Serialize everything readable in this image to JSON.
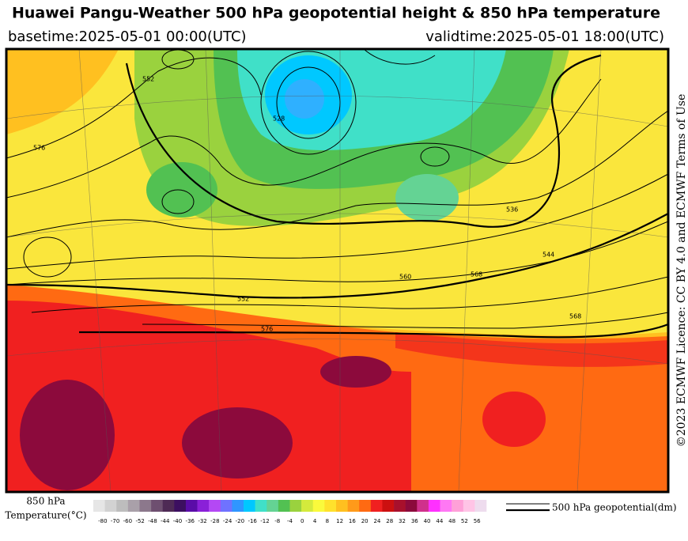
{
  "header": {
    "title": "Huawei Pangu-Weather 500 hPa geopotential height & 850 hPa temperature",
    "basetime": "basetime:2025-05-01 00:00(UTC)",
    "validtime": "validtime:2025-05-01 18:00(UTC)"
  },
  "licence": "©2023 ECMWF Licence: CC BY 4.0 and ECMWF Terms of Use",
  "map": {
    "contour_labels": [
      "576",
      "552",
      "536",
      "544",
      "552",
      "560",
      "568",
      "576",
      "568",
      "528"
    ]
  },
  "colorbar": {
    "title_line1": "850 hPa",
    "title_line2": "Temperature(°C)",
    "ticks": [
      -80,
      -70,
      -60,
      -52,
      -48,
      -44,
      -40,
      -36,
      -32,
      -28,
      -24,
      -20,
      -16,
      -12,
      -8,
      -4,
      0,
      4,
      8,
      12,
      16,
      20,
      24,
      28,
      32,
      36,
      40,
      44,
      48,
      52,
      56
    ],
    "colors": [
      "#e6e6e6",
      "#d2d2d2",
      "#bdbdbd",
      "#a9a0a9",
      "#8c788c",
      "#6e4f70",
      "#4e2a55",
      "#3c0f60",
      "#5a0ca8",
      "#8a20d8",
      "#b448f4",
      "#6f72ff",
      "#2f96ff",
      "#00c8ff",
      "#40e0c8",
      "#64d394",
      "#52c152",
      "#9ad23e",
      "#d4ea3c",
      "#fafa3c",
      "#ffe12c",
      "#ffc020",
      "#ff9a1a",
      "#ff6a12",
      "#f02020",
      "#cc1010",
      "#a8102c",
      "#8c0a3c",
      "#d0308c",
      "#ff30ff",
      "#ff78f4",
      "#ffa0d8",
      "#ffc4e6",
      "#eedcee"
    ]
  },
  "legend": {
    "label": "500 hPa geopotential(dm)"
  }
}
